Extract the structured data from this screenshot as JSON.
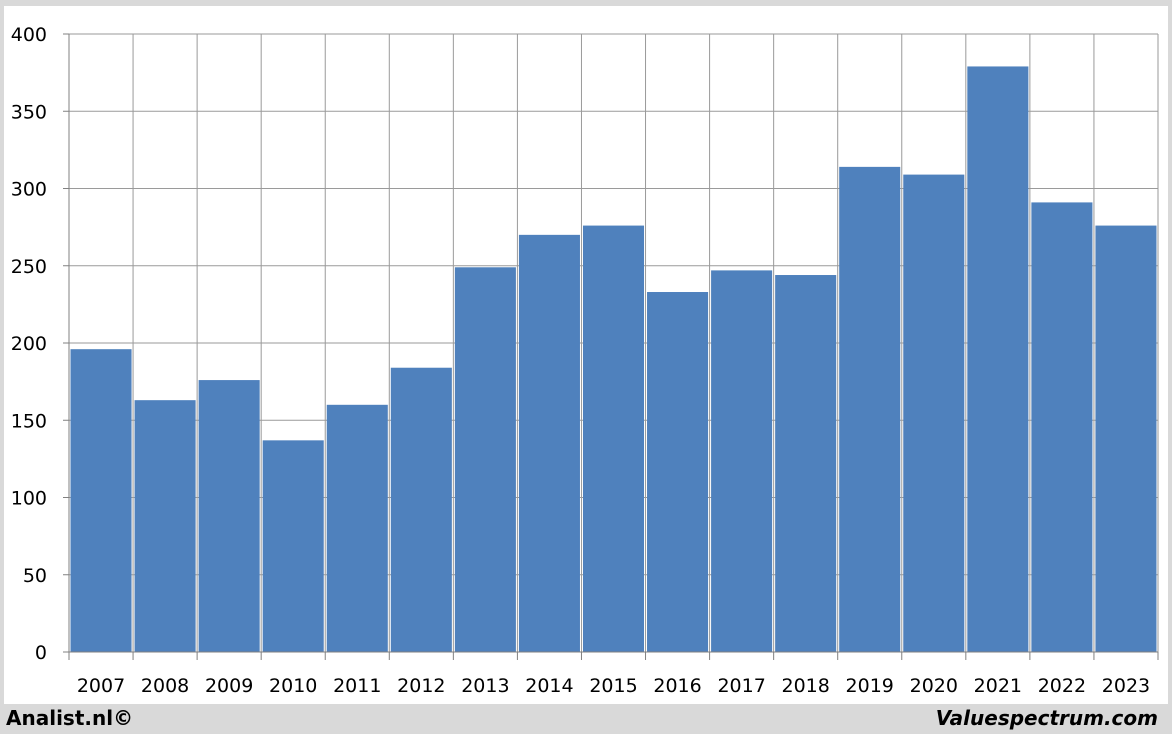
{
  "chart_data": {
    "type": "bar",
    "categories": [
      "2007",
      "2008",
      "2009",
      "2010",
      "2011",
      "2012",
      "2013",
      "2014",
      "2015",
      "2016",
      "2017",
      "2018",
      "2019",
      "2020",
      "2021",
      "2022",
      "2023"
    ],
    "values": [
      196,
      163,
      176,
      137,
      160,
      184,
      249,
      270,
      276,
      233,
      247,
      244,
      314,
      309,
      379,
      291,
      276
    ],
    "yticks": [
      "0",
      "50",
      "100",
      "150",
      "200",
      "250",
      "300",
      "350",
      "400"
    ],
    "ylim": [
      0,
      400
    ],
    "grid": true,
    "bar_color": "#4f81bd"
  },
  "footer": {
    "left": "Analist.nl©",
    "right": "Valuespectrum.com"
  }
}
